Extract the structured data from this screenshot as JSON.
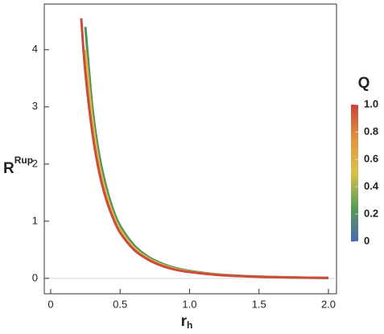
{
  "chart_data": {
    "type": "line",
    "x_label": {
      "base": "r",
      "sub": "h"
    },
    "y_label": {
      "base": "R",
      "sup": "Rup"
    },
    "x": [
      0.22,
      0.25,
      0.3,
      0.35,
      0.4,
      0.45,
      0.5,
      0.6,
      0.7,
      0.8,
      0.9,
      1.0,
      1.2,
      1.4,
      1.6,
      1.8,
      2.0
    ],
    "series": [
      {
        "color": "#4f8f5a",
        "values": [
          null,
          4.4,
          3.0,
          2.15,
          1.6,
          1.2,
          0.92,
          0.58,
          0.38,
          0.26,
          0.18,
          0.13,
          0.07,
          0.04,
          0.024,
          0.014,
          0.008
        ]
      },
      {
        "color": "#d6b84a",
        "values": [
          null,
          4.0,
          2.8,
          2.0,
          1.49,
          1.12,
          0.86,
          0.54,
          0.355,
          0.24,
          0.165,
          0.12,
          0.065,
          0.038,
          0.022,
          0.013,
          0.0075
        ]
      },
      {
        "color": "#cc4b3c",
        "values": [
          4.55,
          3.6,
          2.55,
          1.85,
          1.38,
          1.05,
          0.8,
          0.5,
          0.33,
          0.22,
          0.15,
          0.11,
          0.06,
          0.035,
          0.02,
          0.012,
          0.007
        ]
      }
    ],
    "xlim": [
      -0.046,
      2.058
    ],
    "ylim": [
      -0.27,
      4.8
    ],
    "xticks": [
      0,
      0.5,
      {
        "value": 1,
        "label": "1.0"
      },
      1.5,
      {
        "value": 2,
        "label": "2.0"
      }
    ],
    "yticks": [
      0,
      1,
      2,
      3,
      4
    ],
    "colorbar": {
      "title": "Q",
      "lim": [
        0,
        1
      ],
      "ticks": [
        0,
        0.2,
        0.4,
        0.6,
        0.8,
        {
          "value": 1,
          "label": "1.0"
        }
      ],
      "colors": [
        "#4a69b0",
        "#5a9a58",
        "#d8c24c",
        "#e0953e",
        "#c8413b"
      ]
    }
  }
}
